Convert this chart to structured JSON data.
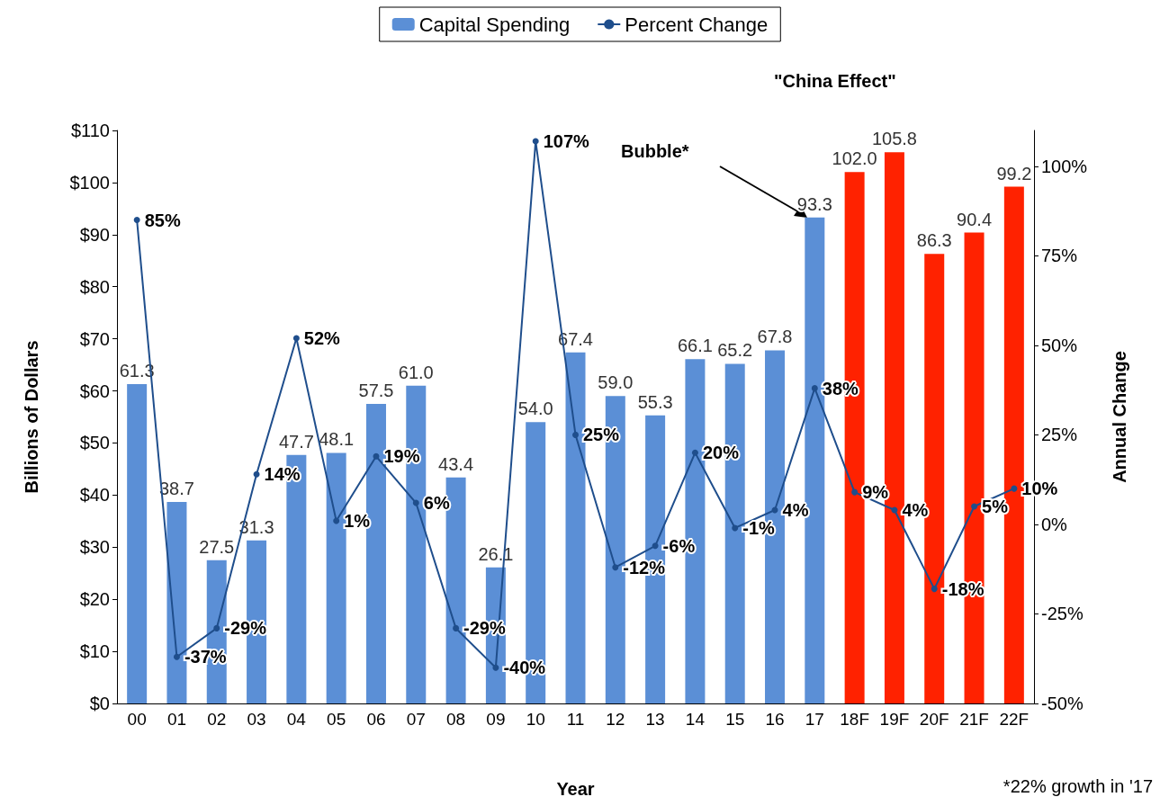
{
  "chart_data": {
    "type": "bar",
    "xlabel": "Year",
    "ylabel": "Billions of Dollars",
    "y2label": "Annual Change",
    "categories": [
      "00",
      "01",
      "02",
      "03",
      "04",
      "05",
      "06",
      "07",
      "08",
      "09",
      "10",
      "11",
      "12",
      "13",
      "14",
      "15",
      "16",
      "17",
      "18F",
      "19F",
      "20F",
      "21F",
      "22F"
    ],
    "series": [
      {
        "name": "Capital Spending",
        "color": "#5b8fd6",
        "colors": [
          "#5b8fd6",
          "#5b8fd6",
          "#5b8fd6",
          "#5b8fd6",
          "#5b8fd6",
          "#5b8fd6",
          "#5b8fd6",
          "#5b8fd6",
          "#5b8fd6",
          "#5b8fd6",
          "#5b8fd6",
          "#5b8fd6",
          "#5b8fd6",
          "#5b8fd6",
          "#5b8fd6",
          "#5b8fd6",
          "#5b8fd6",
          "#5b8fd6",
          "#ff2200",
          "#ff2200",
          "#ff2200",
          "#ff2200",
          "#ff2200"
        ],
        "values": [
          61.3,
          38.7,
          27.5,
          31.3,
          47.7,
          48.1,
          57.5,
          61.0,
          43.4,
          26.1,
          54.0,
          67.4,
          59.0,
          55.3,
          66.1,
          65.2,
          67.8,
          93.3,
          102.0,
          105.8,
          86.3,
          90.4,
          99.2
        ],
        "value_labels": [
          "61.3",
          "38.7",
          "27.5",
          "31.3",
          "47.7",
          "48.1",
          "57.5",
          "61.0",
          "43.4",
          "26.1",
          "54.0",
          "67.4",
          "59.0",
          "55.3",
          "66.1",
          "65.2",
          "67.8",
          "93.3",
          "102.0",
          "105.8",
          "86.3",
          "90.4",
          "99.2"
        ]
      },
      {
        "name": "Percent Change",
        "type": "line",
        "axis": "y2",
        "color": "#1f4e8c",
        "marker": "circle",
        "line_style": "solid",
        "values": [
          85,
          -37,
          -29,
          14,
          52,
          1,
          19,
          6,
          -29,
          -40,
          107,
          25,
          -12,
          -6,
          20,
          -1,
          4,
          38,
          9,
          4,
          -18,
          5,
          10
        ],
        "value_labels": [
          "85%",
          "-37%",
          "-29%",
          "14%",
          "52%",
          "1%",
          "19%",
          "6%",
          "-29%",
          "-40%",
          "107%",
          "25%",
          "-12%",
          "-6%",
          "20%",
          "-1%",
          "4%",
          "38%",
          "9%",
          "4%",
          "-18%",
          "5%",
          "10%"
        ]
      }
    ],
    "ylim": [
      0,
      110
    ],
    "yticks": [
      {
        "value": 0,
        "label": "$0"
      },
      {
        "value": 10,
        "label": "$10"
      },
      {
        "value": 20,
        "label": "$20"
      },
      {
        "value": 30,
        "label": "$30"
      },
      {
        "value": 40,
        "label": "$40"
      },
      {
        "value": 50,
        "label": "$50"
      },
      {
        "value": 60,
        "label": "$60"
      },
      {
        "value": 70,
        "label": "$70"
      },
      {
        "value": 80,
        "label": "$80"
      },
      {
        "value": 90,
        "label": "$90"
      },
      {
        "value": 100,
        "label": "$100"
      },
      {
        "value": 110,
        "label": "$110"
      }
    ],
    "y2lim": [
      -50,
      110
    ],
    "y2ticks": [
      {
        "value": -50,
        "label": "-50%"
      },
      {
        "value": -25,
        "label": "-25%"
      },
      {
        "value": 0,
        "label": "0%"
      },
      {
        "value": 25,
        "label": "25%"
      },
      {
        "value": 50,
        "label": "50%"
      },
      {
        "value": 75,
        "label": "75%"
      },
      {
        "value": 100,
        "label": "100%"
      }
    ],
    "grid": false,
    "legend": "top",
    "annotations": [
      "\"China Effect\"",
      "Bubble*",
      "*22% growth in '17"
    ]
  }
}
